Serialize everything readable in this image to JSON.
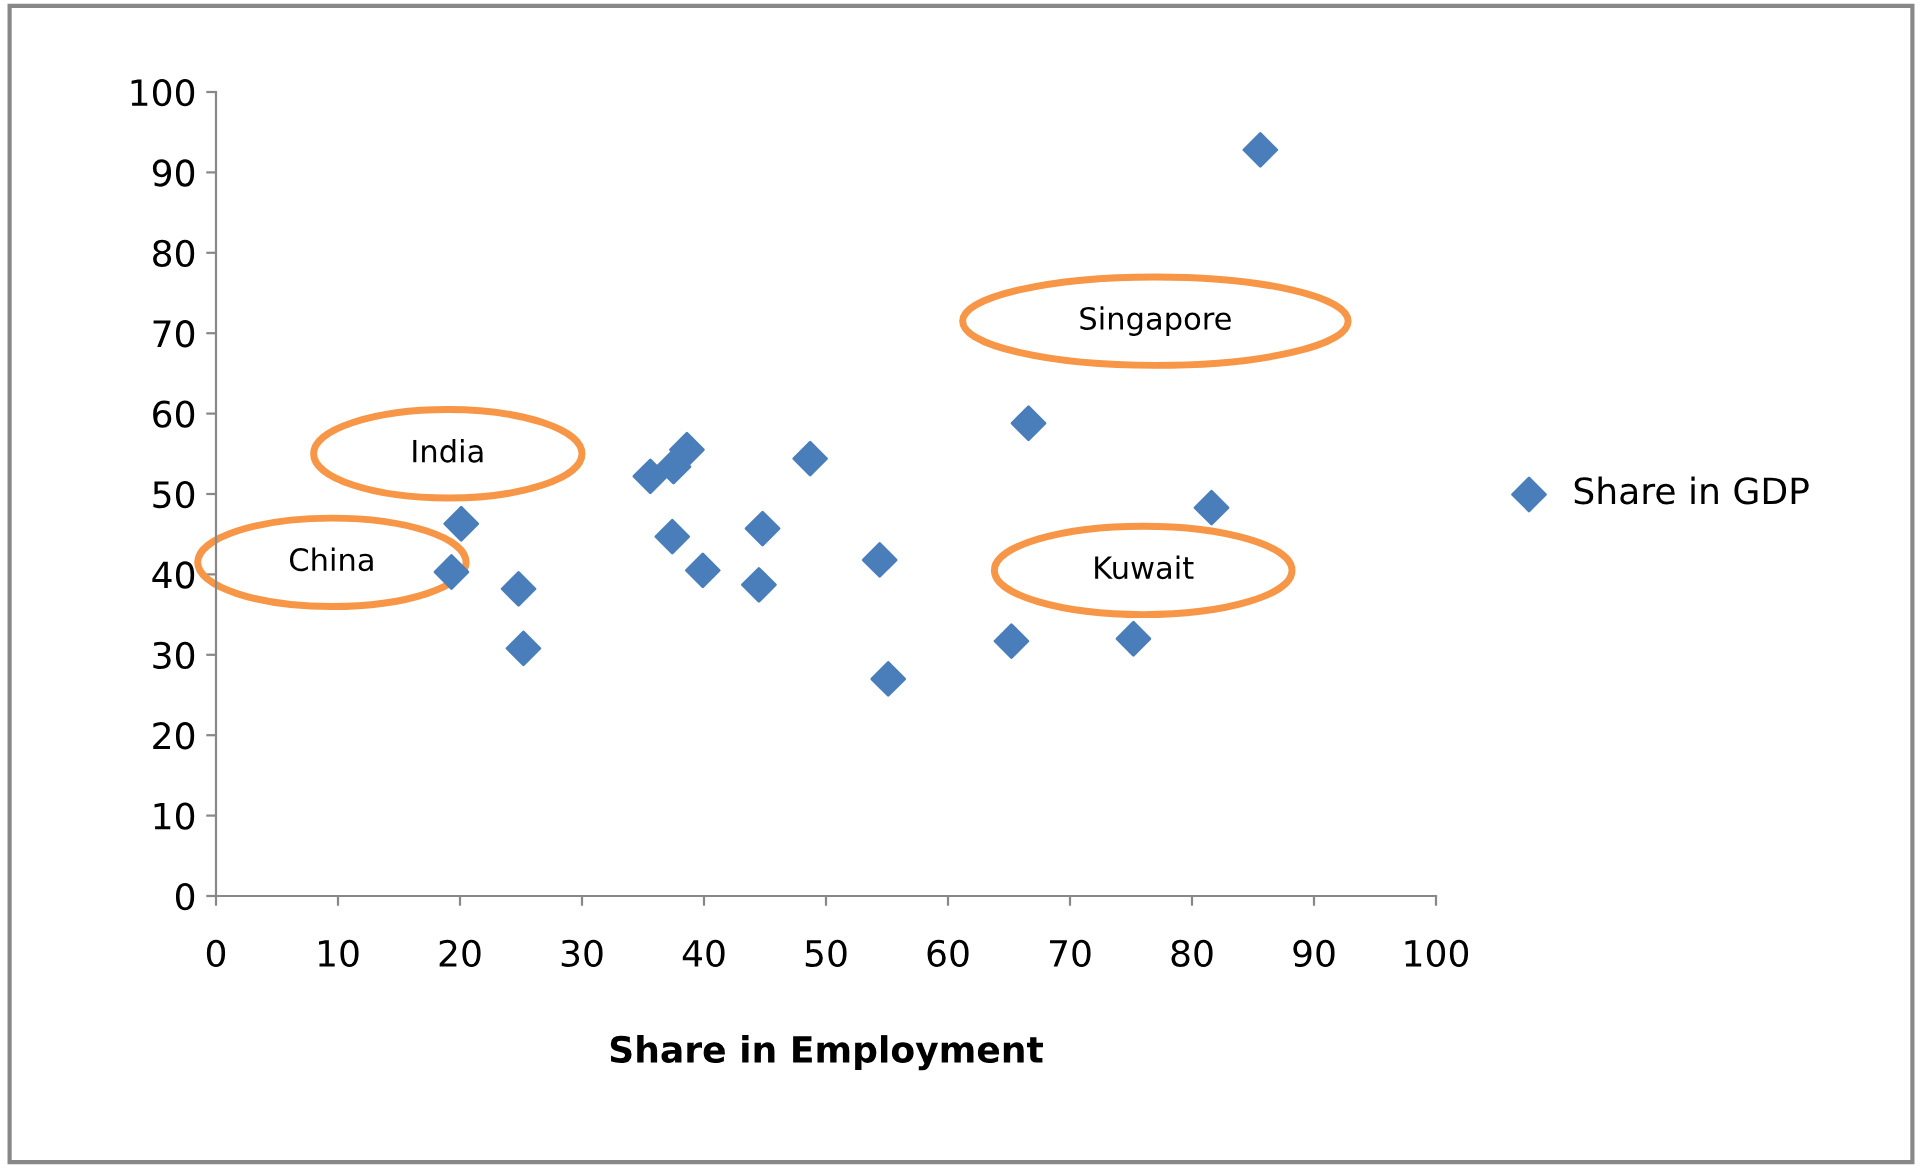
{
  "chart_data": {
    "type": "scatter",
    "xlabel": "Share in Employment",
    "legend": "right",
    "grid": false,
    "marker": "diamond",
    "xlim": [
      0,
      100
    ],
    "ylim": [
      0,
      100
    ],
    "xticks": [
      0,
      10,
      20,
      30,
      40,
      50,
      60,
      70,
      80,
      90,
      100
    ],
    "yticks": [
      0,
      10,
      20,
      30,
      40,
      50,
      60,
      70,
      80,
      90,
      100
    ],
    "series": [
      {
        "name": "Share in GDP",
        "color": "#4a7ebb",
        "x": [
          19.3,
          20.1,
          24.8,
          25.2,
          35.6,
          37.5,
          38.6,
          37.4,
          39.9,
          44.5,
          44.8,
          48.7,
          54.4,
          55.1,
          65.2,
          66.6,
          75.2,
          81.6,
          85.6
        ],
        "values": [
          40.3,
          46.3,
          38.2,
          30.8,
          52.2,
          53.4,
          55.5,
          44.7,
          40.5,
          38.7,
          45.7,
          54.4,
          41.8,
          27.0,
          31.7,
          58.8,
          32.0,
          48.3,
          92.8
        ]
      }
    ],
    "annotations": [
      "China",
      "India",
      "Singapore",
      "Kuwait"
    ]
  }
}
